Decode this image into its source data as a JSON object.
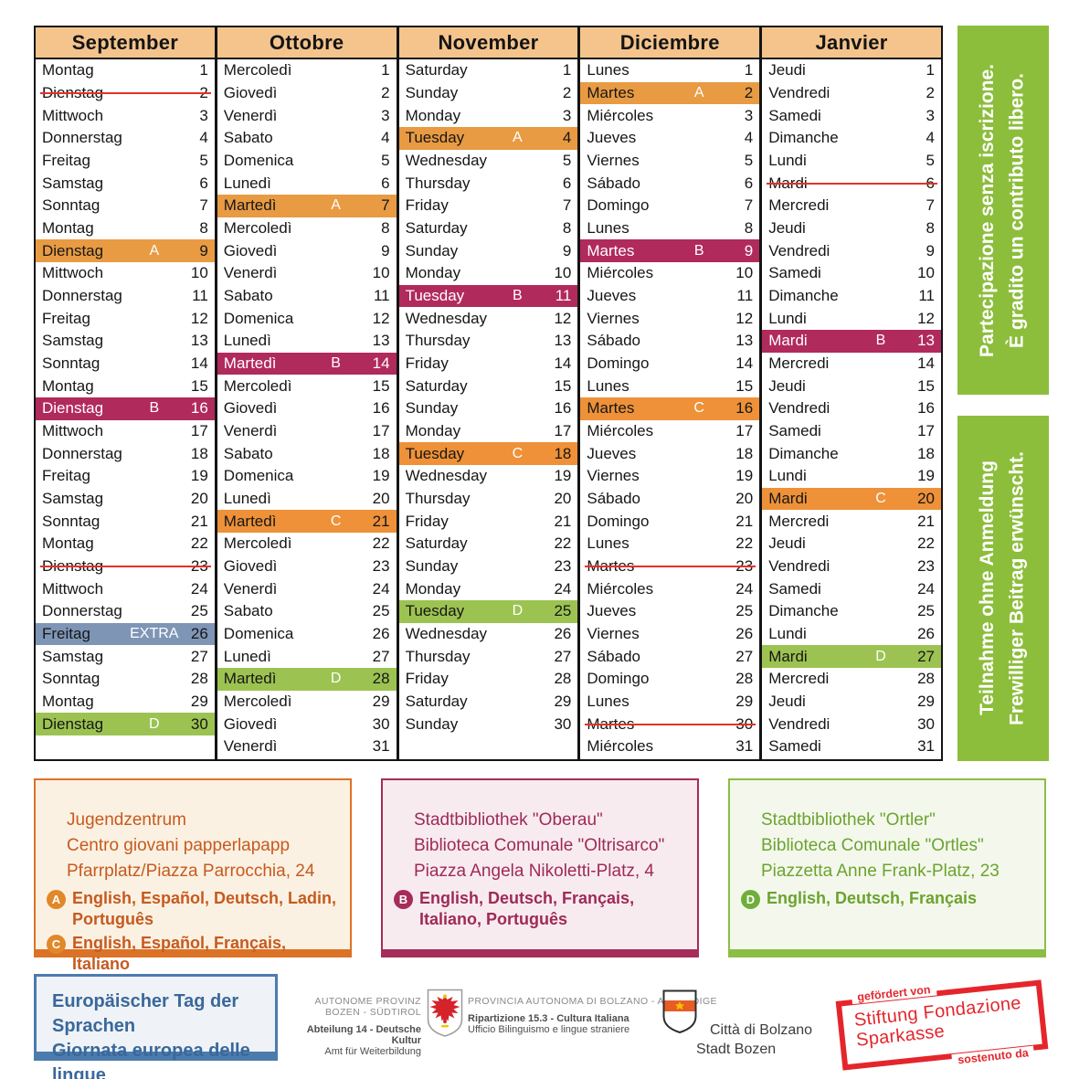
{
  "calendar": {
    "months": [
      {
        "name": "September",
        "days": [
          {
            "d": "Montag",
            "n": 1
          },
          {
            "d": "Dienstag",
            "n": 2,
            "s": true
          },
          {
            "d": "Mittwoch",
            "n": 3
          },
          {
            "d": "Donnerstag",
            "n": 4
          },
          {
            "d": "Freitag",
            "n": 5
          },
          {
            "d": "Samstag",
            "n": 6
          },
          {
            "d": "Sonntag",
            "n": 7
          },
          {
            "d": "Montag",
            "n": 8
          },
          {
            "d": "Dienstag",
            "n": 9,
            "t": "A"
          },
          {
            "d": "Mittwoch",
            "n": 10
          },
          {
            "d": "Donnerstag",
            "n": 11
          },
          {
            "d": "Freitag",
            "n": 12
          },
          {
            "d": "Samstag",
            "n": 13
          },
          {
            "d": "Sonntag",
            "n": 14
          },
          {
            "d": "Montag",
            "n": 15
          },
          {
            "d": "Dienstag",
            "n": 16,
            "t": "B"
          },
          {
            "d": "Mittwoch",
            "n": 17
          },
          {
            "d": "Donnerstag",
            "n": 18
          },
          {
            "d": "Freitag",
            "n": 19
          },
          {
            "d": "Samstag",
            "n": 20
          },
          {
            "d": "Sonntag",
            "n": 21
          },
          {
            "d": "Montag",
            "n": 22
          },
          {
            "d": "Dienstag",
            "n": 23,
            "s": true
          },
          {
            "d": "Mittwoch",
            "n": 24
          },
          {
            "d": "Donnerstag",
            "n": 25
          },
          {
            "d": "Freitag",
            "n": 26,
            "t": "EXTRA"
          },
          {
            "d": "Samstag",
            "n": 27
          },
          {
            "d": "Sonntag",
            "n": 28
          },
          {
            "d": "Montag",
            "n": 29
          },
          {
            "d": "Dienstag",
            "n": 30,
            "t": "D"
          }
        ]
      },
      {
        "name": "Ottobre",
        "days": [
          {
            "d": "Mercoledì",
            "n": 1
          },
          {
            "d": "Giovedì",
            "n": 2
          },
          {
            "d": "Venerdì",
            "n": 3
          },
          {
            "d": "Sabato",
            "n": 4
          },
          {
            "d": "Domenica",
            "n": 5
          },
          {
            "d": "Lunedì",
            "n": 6
          },
          {
            "d": "Martedì",
            "n": 7,
            "t": "A"
          },
          {
            "d": "Mercoledì",
            "n": 8
          },
          {
            "d": "Giovedì",
            "n": 9
          },
          {
            "d": "Venerdì",
            "n": 10
          },
          {
            "d": "Sabato",
            "n": 11
          },
          {
            "d": "Domenica",
            "n": 12
          },
          {
            "d": "Lunedì",
            "n": 13
          },
          {
            "d": "Martedì",
            "n": 14,
            "t": "B"
          },
          {
            "d": "Mercoledì",
            "n": 15
          },
          {
            "d": "Giovedì",
            "n": 16
          },
          {
            "d": "Venerdì",
            "n": 17
          },
          {
            "d": "Sabato",
            "n": 18
          },
          {
            "d": "Domenica",
            "n": 19
          },
          {
            "d": "Lunedì",
            "n": 20
          },
          {
            "d": "Martedì",
            "n": 21,
            "t": "C"
          },
          {
            "d": "Mercoledì",
            "n": 22
          },
          {
            "d": "Giovedì",
            "n": 23
          },
          {
            "d": "Venerdì",
            "n": 24
          },
          {
            "d": "Sabato",
            "n": 25
          },
          {
            "d": "Domenica",
            "n": 26
          },
          {
            "d": "Lunedì",
            "n": 27
          },
          {
            "d": "Martedì",
            "n": 28,
            "t": "D"
          },
          {
            "d": "Mercoledì",
            "n": 29
          },
          {
            "d": "Giovedì",
            "n": 30
          },
          {
            "d": "Venerdì",
            "n": 31
          }
        ]
      },
      {
        "name": "November",
        "days": [
          {
            "d": "Saturday",
            "n": 1
          },
          {
            "d": "Sunday",
            "n": 2
          },
          {
            "d": "Monday",
            "n": 3
          },
          {
            "d": "Tuesday",
            "n": 4,
            "t": "A"
          },
          {
            "d": "Wednesday",
            "n": 5
          },
          {
            "d": "Thursday",
            "n": 6
          },
          {
            "d": "Friday",
            "n": 7
          },
          {
            "d": "Saturday",
            "n": 8
          },
          {
            "d": "Sunday",
            "n": 9
          },
          {
            "d": "Monday",
            "n": 10
          },
          {
            "d": "Tuesday",
            "n": 11,
            "t": "B"
          },
          {
            "d": "Wednesday",
            "n": 12
          },
          {
            "d": "Thursday",
            "n": 13
          },
          {
            "d": "Friday",
            "n": 14
          },
          {
            "d": "Saturday",
            "n": 15
          },
          {
            "d": "Sunday",
            "n": 16
          },
          {
            "d": "Monday",
            "n": 17
          },
          {
            "d": "Tuesday",
            "n": 18,
            "t": "C"
          },
          {
            "d": "Wednesday",
            "n": 19
          },
          {
            "d": "Thursday",
            "n": 20
          },
          {
            "d": "Friday",
            "n": 21
          },
          {
            "d": "Saturday",
            "n": 22
          },
          {
            "d": "Sunday",
            "n": 23
          },
          {
            "d": "Monday",
            "n": 24
          },
          {
            "d": "Tuesday",
            "n": 25,
            "t": "D"
          },
          {
            "d": "Wednesday",
            "n": 26
          },
          {
            "d": "Thursday",
            "n": 27
          },
          {
            "d": "Friday",
            "n": 28
          },
          {
            "d": "Saturday",
            "n": 29
          },
          {
            "d": "Sunday",
            "n": 30
          }
        ]
      },
      {
        "name": "Diciembre",
        "days": [
          {
            "d": "Lunes",
            "n": 1
          },
          {
            "d": "Martes",
            "n": 2,
            "t": "A"
          },
          {
            "d": "Miércoles",
            "n": 3
          },
          {
            "d": "Jueves",
            "n": 4
          },
          {
            "d": "Viernes",
            "n": 5
          },
          {
            "d": "Sábado",
            "n": 6
          },
          {
            "d": "Domingo",
            "n": 7
          },
          {
            "d": "Lunes",
            "n": 8
          },
          {
            "d": "Martes",
            "n": 9,
            "t": "B"
          },
          {
            "d": "Miércoles",
            "n": 10
          },
          {
            "d": "Jueves",
            "n": 11
          },
          {
            "d": "Viernes",
            "n": 12
          },
          {
            "d": "Sábado",
            "n": 13
          },
          {
            "d": "Domingo",
            "n": 14
          },
          {
            "d": "Lunes",
            "n": 15
          },
          {
            "d": "Martes",
            "n": 16,
            "t": "C"
          },
          {
            "d": "Miércoles",
            "n": 17
          },
          {
            "d": "Jueves",
            "n": 18
          },
          {
            "d": "Viernes",
            "n": 19
          },
          {
            "d": "Sábado",
            "n": 20
          },
          {
            "d": "Domingo",
            "n": 21
          },
          {
            "d": "Lunes",
            "n": 22
          },
          {
            "d": "Martes",
            "n": 23,
            "s": true
          },
          {
            "d": "Miércoles",
            "n": 24
          },
          {
            "d": "Jueves",
            "n": 25
          },
          {
            "d": "Viernes",
            "n": 26
          },
          {
            "d": "Sábado",
            "n": 27
          },
          {
            "d": "Domingo",
            "n": 28
          },
          {
            "d": "Lunes",
            "n": 29
          },
          {
            "d": "Martes",
            "n": 30,
            "s": true
          },
          {
            "d": "Miércoles",
            "n": 31
          }
        ]
      },
      {
        "name": "Janvier",
        "days": [
          {
            "d": "Jeudi",
            "n": 1
          },
          {
            "d": "Vendredi",
            "n": 2
          },
          {
            "d": "Samedi",
            "n": 3
          },
          {
            "d": "Dimanche",
            "n": 4
          },
          {
            "d": "Lundi",
            "n": 5
          },
          {
            "d": "Mardi",
            "n": 6,
            "s": true
          },
          {
            "d": "Mercredi",
            "n": 7
          },
          {
            "d": "Jeudi",
            "n": 8
          },
          {
            "d": "Vendredi",
            "n": 9
          },
          {
            "d": "Samedi",
            "n": 10
          },
          {
            "d": "Dimanche",
            "n": 11
          },
          {
            "d": "Lundi",
            "n": 12
          },
          {
            "d": "Mardi",
            "n": 13,
            "t": "B"
          },
          {
            "d": "Mercredi",
            "n": 14
          },
          {
            "d": "Jeudi",
            "n": 15
          },
          {
            "d": "Vendredi",
            "n": 16
          },
          {
            "d": "Samedi",
            "n": 17
          },
          {
            "d": "Dimanche",
            "n": 18
          },
          {
            "d": "Lundi",
            "n": 19
          },
          {
            "d": "Mardi",
            "n": 20,
            "t": "C"
          },
          {
            "d": "Mercredi",
            "n": 21
          },
          {
            "d": "Jeudi",
            "n": 22
          },
          {
            "d": "Vendredi",
            "n": 23
          },
          {
            "d": "Samedi",
            "n": 24
          },
          {
            "d": "Dimanche",
            "n": 25
          },
          {
            "d": "Lundi",
            "n": 26
          },
          {
            "d": "Mardi",
            "n": 27,
            "t": "D"
          },
          {
            "d": "Mercredi",
            "n": 28
          },
          {
            "d": "Jeudi",
            "n": 29
          },
          {
            "d": "Vendredi",
            "n": 30
          },
          {
            "d": "Samedi",
            "n": 31
          }
        ]
      }
    ]
  },
  "colors": {
    "header_bg": "#F4C48C",
    "tag_A": "#E89B43",
    "tag_B": "#B12A5C",
    "tag_C": "#EE9138",
    "tag_D": "#9CC351",
    "tag_EXTRA": "#7E95B6",
    "banner_green": "#8CBE3B",
    "strike_red": "#E53127",
    "sponsor_red": "#E4262C",
    "event_blue": "#4C7BAD"
  },
  "banners": [
    {
      "lines": [
        "Partecipazione senza iscrizione.",
        "È gradito un contributo libero."
      ]
    },
    {
      "lines": [
        "Teilnahme ohne Anmeldung",
        "Frewilliger Beitrag erwünscht."
      ]
    }
  ],
  "info_boxes": [
    {
      "lines": [
        "Jugendzentrum",
        "Centro giovani papperlapapp",
        "Pfarrplatz/Piazza Parrocchia, 24"
      ],
      "languages": [
        {
          "tag": "A",
          "text": "English, Español, Deutsch, Ladin, Português"
        },
        {
          "tag": "C",
          "text": "English, Español, Français, Italiano"
        }
      ],
      "accent": "#DC7226",
      "bg": "#FBF1E2",
      "text_color": "#C65A20",
      "badge_color": "#E0882A"
    },
    {
      "lines": [
        "Stadtbibliothek \"Oberau\"",
        "Biblioteca Comunale \"Oltrisarco\"",
        "Piazza Angela Nikoletti-Platz, 4"
      ],
      "languages": [
        {
          "tag": "B",
          "text": "English, Deutsch, Français, Italiano, Português"
        }
      ],
      "accent": "#A62C59",
      "bg": "#F8EBF0",
      "text_color": "#9E2A56",
      "badge_color": "#A62C59"
    },
    {
      "lines": [
        "Stadtbibliothek \"Ortler\"",
        "Biblioteca Comunale \"Ortles\"",
        "Piazzetta Anne Frank-Platz, 23"
      ],
      "languages": [
        {
          "tag": "D",
          "text": "English, Deutsch, Français"
        }
      ],
      "accent": "#8BBE44",
      "bg": "#F4F8EC",
      "text_color": "#6CA32F",
      "badge_color": "#6FAE3A"
    }
  ],
  "event_box": {
    "lines": [
      "Europäischer Tag der Sprachen",
      "Giornata europea delle lingue"
    ]
  },
  "logos": {
    "province_left_title": "AUTONOME PROVINZ BOZEN - SÜDTIROL",
    "province_left_sub1": "Abteilung 14 - Deutsche Kultur",
    "province_left_sub2": "Amt für Weiterbildung",
    "province_right_title": "PROVINCIA AUTONOMA DI BOLZANO - ALTO ADIGE",
    "province_right_sub1": "Ripartizione 15.3 - Cultura Italiana",
    "province_right_sub2": "Ufficio Bilinguismo e lingue straniere",
    "city_line1": "Città di Bolzano",
    "city_line2": "Stadt Bozen",
    "sponsor_top": "gefördert von",
    "sponsor_line1": "Stiftung Fondazione",
    "sponsor_line2": "Sparkasse",
    "sponsor_bottom": "sostenuto da"
  }
}
